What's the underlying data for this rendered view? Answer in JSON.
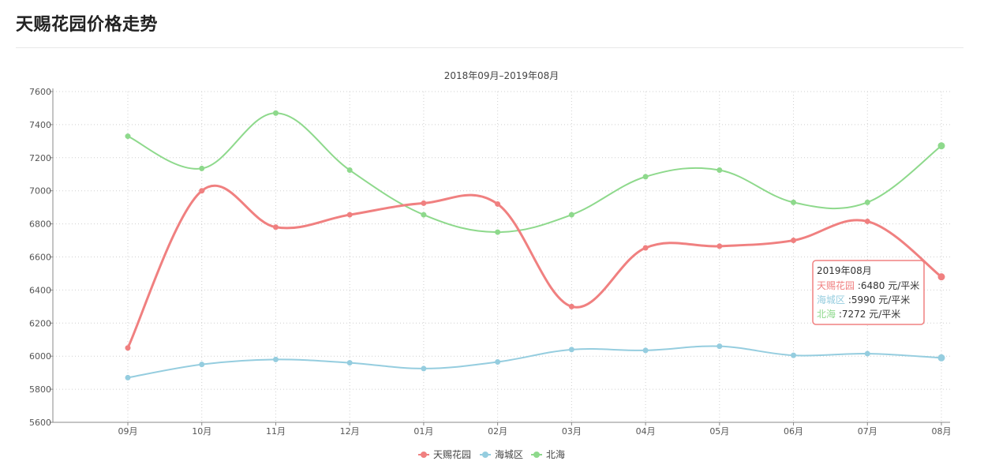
{
  "page": {
    "title": "天赐花园价格走势"
  },
  "chart_data": {
    "type": "line",
    "subtitle": "2018年09月–2019年08月",
    "categories": [
      "09月",
      "10月",
      "11月",
      "12月",
      "01月",
      "02月",
      "03月",
      "04月",
      "05月",
      "06月",
      "07月",
      "08月"
    ],
    "ylim": [
      5600,
      7600
    ],
    "yticks": [
      5600,
      5800,
      6000,
      6200,
      6400,
      6600,
      6800,
      7000,
      7200,
      7400,
      7600
    ],
    "grid": true,
    "legend_position": "bottom-center",
    "series": [
      {
        "name": "天赐花园",
        "color": "#f08080",
        "values": [
          6050,
          7000,
          6780,
          6855,
          6925,
          6920,
          6300,
          6655,
          6665,
          6700,
          6815,
          6480
        ]
      },
      {
        "name": "海城区",
        "color": "#95cddf",
        "values": [
          5870,
          5950,
          5980,
          5960,
          5925,
          5965,
          6040,
          6035,
          6060,
          6005,
          6015,
          5990
        ]
      },
      {
        "name": "北海",
        "color": "#8ed98c",
        "values": [
          7330,
          7135,
          7470,
          7125,
          6855,
          6750,
          6855,
          7085,
          7125,
          6930,
          6930,
          7272
        ]
      }
    ],
    "tooltip": {
      "title": "2019年08月",
      "rows": [
        {
          "name": "天赐花园",
          "value": "6480",
          "unit": "元/平米"
        },
        {
          "name": "海城区",
          "value": "5990",
          "unit": "元/平米"
        },
        {
          "name": "北海",
          "value": "7272",
          "unit": "元/平米"
        }
      ]
    }
  }
}
